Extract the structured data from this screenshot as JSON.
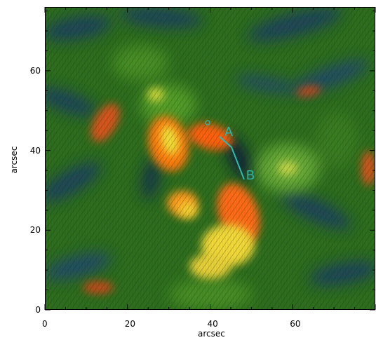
{
  "plot": {
    "xlabel": "arcsec",
    "ylabel": "arcsec",
    "x_ticks": [
      "0",
      "20",
      "40",
      "60"
    ],
    "y_ticks": [
      "0",
      "20",
      "40",
      "60"
    ],
    "x_range": [
      0,
      80
    ],
    "y_range": [
      0,
      76
    ]
  },
  "annotations": {
    "point_a": "A",
    "point_b": "B"
  },
  "colors": {
    "background_green": "#2e6e1e",
    "emission_orange": "#ff7a10",
    "emission_yellow": "#f2e038",
    "dark_blue": "#1b3f63",
    "marker_cyan": "#2fb9b0"
  }
}
